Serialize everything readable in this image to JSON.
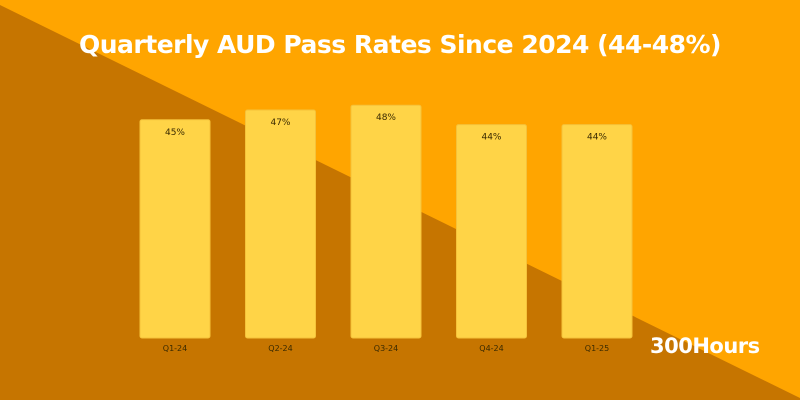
{
  "colors": {
    "background_light": "#FFA500",
    "background_dark": "#C67500",
    "bar": "#FFD447",
    "bar_edge": "#F5C23A",
    "label_text": "#3a2a00",
    "title_text": "#FFFFFF"
  },
  "brand": "300Hours",
  "chart_data": {
    "type": "bar",
    "title": "Quarterly AUD Pass Rates Since 2024 (44-48%)",
    "xlabel": "",
    "ylabel": "",
    "categories": [
      "Q1-24",
      "Q2-24",
      "Q3-24",
      "Q4-24",
      "Q1-25"
    ],
    "values": [
      45,
      47,
      48,
      44,
      44
    ],
    "data_labels": [
      "45%",
      "47%",
      "48%",
      "44%",
      "44%"
    ],
    "unit": "%",
    "ylim": [
      0,
      100
    ],
    "grid": false,
    "legend": "none"
  }
}
